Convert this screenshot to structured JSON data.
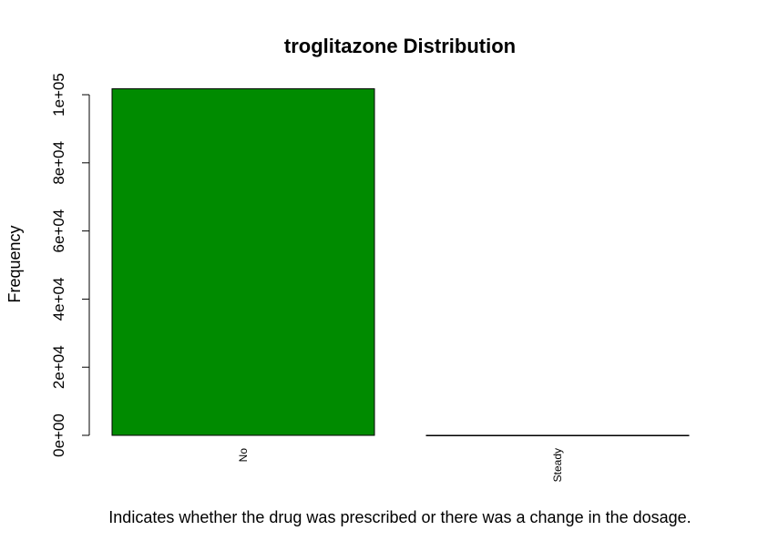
{
  "chart_data": {
    "type": "bar",
    "title": "troglitazone Distribution",
    "xlabel": "Indicates whether the drug was prescribed or there was a change in the dosage.",
    "ylabel": "Frequency",
    "categories": [
      "No",
      "Steady"
    ],
    "values": [
      101763,
      3
    ],
    "ylim": [
      0,
      100000
    ],
    "yticks": [
      0,
      20000,
      40000,
      60000,
      80000,
      100000
    ],
    "ytick_labels": [
      "0e+00",
      "2e+04",
      "4e+04",
      "6e+04",
      "8e+04",
      "1e+05"
    ],
    "bar_color": "#008b00",
    "grid": false,
    "legend": "none"
  }
}
